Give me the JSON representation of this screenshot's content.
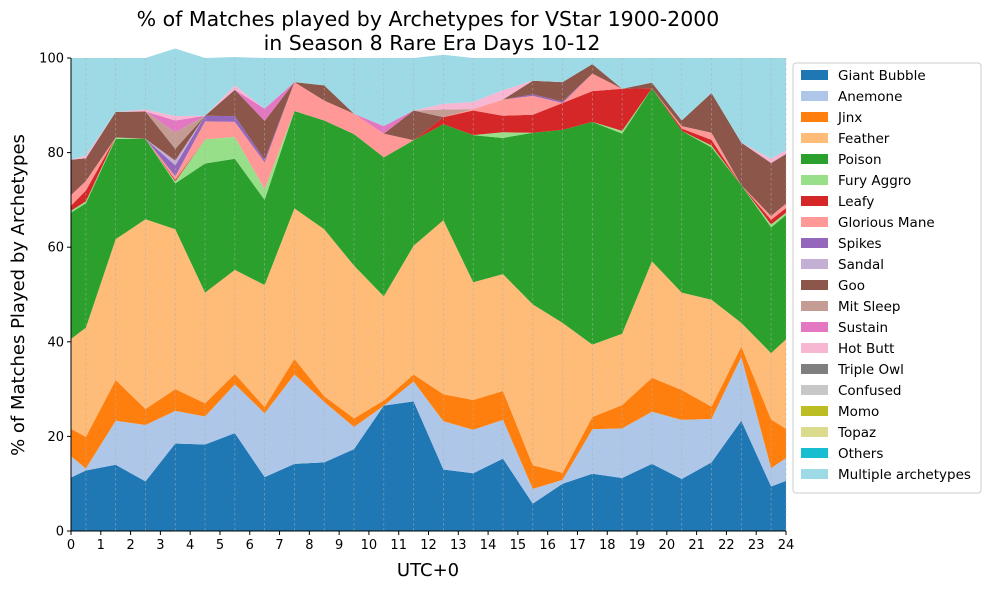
{
  "chart_data": {
    "type": "area",
    "stacked": true,
    "title": "% of Matches played by Archetypes for VStar 1900-2000",
    "subtitle": "in Season 8 Rare Era Days 10-12",
    "xlabel": "UTC+0",
    "ylabel": "% of Matches Played by Archetypes",
    "xlim": [
      0,
      24
    ],
    "ylim": [
      0,
      100
    ],
    "x_ticks": [
      "0",
      "1",
      "2",
      "3",
      "4",
      "5",
      "6",
      "7",
      "8",
      "9",
      "10",
      "11",
      "12",
      "13",
      "14",
      "15",
      "16",
      "17",
      "18",
      "19",
      "20",
      "21",
      "22",
      "23",
      "24"
    ],
    "y_ticks": [
      "0",
      "20",
      "40",
      "60",
      "80",
      "100"
    ],
    "grid": "vertical dashed at half-hour points",
    "legend_position": "right, outside",
    "x": [
      0,
      0.5,
      1.5,
      2.5,
      3.5,
      4.5,
      5.5,
      6.5,
      7.5,
      8.5,
      9.5,
      10.5,
      11.5,
      12.5,
      13.5,
      14.5,
      15.5,
      16.5,
      17.5,
      18.5,
      19.5,
      20.5,
      21.5,
      22.5,
      23.5,
      24
    ],
    "series": [
      {
        "name": "Giant Bubble",
        "color": "#1f77b4",
        "values": [
          11.3,
          12.8,
          14.0,
          10.5,
          18.5,
          18.3,
          20.7,
          11.4,
          14.2,
          14.5,
          17.3,
          26.5,
          27.4,
          13.0,
          12.2,
          15.3,
          5.8,
          10.0,
          12.1,
          11.2,
          14.2,
          11.0,
          14.5,
          23.3,
          9.4,
          10.6
        ]
      },
      {
        "name": "Anemone",
        "color": "#aec7e8",
        "values": [
          4.5,
          0.4,
          9.3,
          11.9,
          6.9,
          5.9,
          10.3,
          13.5,
          18.9,
          12.8,
          4.7,
          0.0,
          4.2,
          10.2,
          9.2,
          8.2,
          3.1,
          0.8,
          9.4,
          10.5,
          11.0,
          12.5,
          9.2,
          13.5,
          3.9,
          4.8
        ]
      },
      {
        "name": "Jinx",
        "color": "#ff7f0e",
        "values": [
          5.8,
          6.7,
          8.6,
          3.4,
          4.6,
          2.8,
          2.2,
          1.3,
          3.3,
          1.2,
          1.8,
          1.1,
          1.5,
          5.7,
          6.3,
          6.1,
          5.0,
          1.5,
          2.6,
          4.9,
          7.2,
          6.3,
          2.6,
          2.2,
          10.3,
          6.2
        ]
      },
      {
        "name": "Feather",
        "color": "#ffbb78",
        "values": [
          19.0,
          23.1,
          29.8,
          40.1,
          33.8,
          23.4,
          22.0,
          25.8,
          31.8,
          35.3,
          32.3,
          22.0,
          27.2,
          36.8,
          24.9,
          24.7,
          34.0,
          31.7,
          15.3,
          15.1,
          24.6,
          20.6,
          22.6,
          5.0,
          14.0,
          18.9
        ]
      },
      {
        "name": "Poison",
        "color": "#2ca02c",
        "values": [
          26.7,
          26.3,
          21.2,
          17.0,
          9.7,
          27.3,
          23.5,
          18.0,
          20.6,
          23.0,
          27.8,
          29.4,
          22.3,
          20.3,
          31.1,
          28.8,
          36.3,
          40.8,
          47.1,
          42.3,
          36.6,
          34.2,
          32.2,
          29.1,
          26.6,
          26.3
        ]
      },
      {
        "name": "Fury Aggro",
        "color": "#98df8a",
        "values": [
          0.4,
          0.4,
          0.3,
          0.0,
          0.4,
          5.1,
          4.6,
          2.3,
          0.0,
          0.0,
          0.0,
          0.0,
          0.0,
          0.0,
          0.0,
          1.2,
          0.0,
          0.0,
          0.0,
          0.6,
          0.0,
          0.0,
          0.4,
          0.0,
          0.6,
          0.5
        ]
      },
      {
        "name": "Leafy",
        "color": "#d62728",
        "values": [
          1.1,
          2.3,
          0.0,
          0.0,
          0.3,
          0.0,
          0.0,
          0.0,
          0.0,
          0.0,
          0.0,
          0.0,
          0.0,
          1.5,
          5.2,
          3.5,
          3.8,
          5.7,
          6.5,
          8.9,
          0.0,
          0.5,
          1.2,
          0.0,
          1.0,
          1.0
        ]
      },
      {
        "name": "Glorious Mane",
        "color": "#ff9896",
        "values": [
          2.2,
          2.0,
          0.0,
          0.0,
          0.8,
          3.8,
          3.2,
          5.6,
          6.1,
          4.2,
          4.3,
          5.0,
          0.0,
          0.0,
          0.3,
          3.4,
          4.0,
          0.0,
          3.7,
          0.0,
          0.0,
          0.5,
          1.5,
          0.0,
          0.8,
          0.9
        ]
      },
      {
        "name": "Spikes",
        "color": "#9467bd",
        "values": [
          0.0,
          0.0,
          0.0,
          0.0,
          2.3,
          1.2,
          1.2,
          0.6,
          0.0,
          0.0,
          0.0,
          0.0,
          0.0,
          0.0,
          0.0,
          0.0,
          0.3,
          0.3,
          0.0,
          0.0,
          0.0,
          0.0,
          0.0,
          0.0,
          0.0,
          0.0
        ]
      },
      {
        "name": "Sandal",
        "color": "#c5b0d5",
        "values": [
          0.0,
          0.0,
          0.0,
          0.0,
          1.0,
          0.0,
          0.0,
          0.0,
          0.0,
          0.0,
          0.0,
          0.0,
          0.0,
          0.0,
          0.0,
          0.0,
          0.0,
          0.0,
          0.0,
          0.0,
          0.0,
          0.0,
          0.0,
          0.0,
          0.0,
          0.0
        ]
      },
      {
        "name": "Goo",
        "color": "#8c564b",
        "values": [
          7.5,
          4.8,
          5.4,
          5.8,
          2.5,
          0.0,
          5.6,
          8.2,
          0.0,
          3.2,
          0.0,
          0.0,
          6.3,
          0.0,
          0.0,
          0.0,
          2.9,
          4.1,
          2.0,
          0.0,
          1.2,
          1.2,
          8.4,
          9.0,
          11.2,
          10.5
        ]
      },
      {
        "name": "Mit Sleep",
        "color": "#c49c94",
        "values": [
          0.0,
          0.0,
          0.0,
          0.0,
          3.5,
          0.0,
          0.0,
          0.0,
          0.0,
          0.0,
          0.0,
          0.0,
          0.0,
          1.6,
          0.0,
          0.0,
          0.0,
          0.0,
          0.0,
          0.0,
          0.0,
          0.0,
          0.0,
          0.0,
          0.0,
          0.0
        ]
      },
      {
        "name": "Sustain",
        "color": "#e377c2",
        "values": [
          0.0,
          0.0,
          0.0,
          0.0,
          2.5,
          0.0,
          0.0,
          2.6,
          0.0,
          0.0,
          0.0,
          1.6,
          0.0,
          0.0,
          0.0,
          0.0,
          0.0,
          0.0,
          0.0,
          0.0,
          0.0,
          0.0,
          0.0,
          0.0,
          0.0,
          0.0
        ]
      },
      {
        "name": "Hot Butt",
        "color": "#f7b6d2",
        "values": [
          0.0,
          0.6,
          0.0,
          0.4,
          0.9,
          0.0,
          0.9,
          0.0,
          0.0,
          0.0,
          0.0,
          0.0,
          0.0,
          1.2,
          1.5,
          2.0,
          0.0,
          0.0,
          0.0,
          0.0,
          0.0,
          0.0,
          0.0,
          0.0,
          0.9,
          0.8
        ]
      },
      {
        "name": "Triple Owl",
        "color": "#7f7f7f",
        "values": [
          0,
          0,
          0,
          0,
          0,
          0,
          0,
          0,
          0,
          0,
          0,
          0,
          0,
          0,
          0,
          0,
          0,
          0,
          0,
          0,
          0,
          0,
          0,
          0,
          0,
          0
        ]
      },
      {
        "name": "Confused",
        "color": "#c7c7c7",
        "values": [
          0,
          0,
          0,
          0,
          0,
          0,
          0,
          0,
          0,
          0,
          0,
          0,
          0,
          0,
          0,
          0,
          0,
          0,
          0,
          0,
          0,
          0,
          0,
          0,
          0,
          0
        ]
      },
      {
        "name": "Momo",
        "color": "#bcbd22",
        "values": [
          0,
          0,
          0,
          0,
          0,
          0,
          0,
          0,
          0,
          0,
          0,
          0,
          0,
          0,
          0,
          0,
          0,
          0,
          0,
          0,
          0,
          0,
          0,
          0,
          0,
          0
        ]
      },
      {
        "name": "Topaz",
        "color": "#dbdb8d",
        "values": [
          0,
          0,
          0,
          0,
          0,
          0,
          0,
          0,
          0,
          0,
          0,
          0,
          0,
          0,
          0,
          0,
          0,
          0,
          0,
          0,
          0,
          0,
          0,
          0,
          0,
          0
        ]
      },
      {
        "name": "Others",
        "color": "#17becf",
        "values": [
          0,
          0,
          0,
          0,
          0,
          0,
          0,
          0,
          0,
          0,
          0,
          0,
          0,
          0,
          0,
          0,
          0,
          0,
          0,
          0,
          0,
          0,
          0,
          0,
          0,
          0
        ]
      },
      {
        "name": "Multiple archetypes",
        "color": "#9edae5",
        "values": [
          21.5,
          20.6,
          11.4,
          10.9,
          14.3,
          12.2,
          6.0,
          10.7,
          5.1,
          5.8,
          11.8,
          14.4,
          11.1,
          10.4,
          9.3,
          6.8,
          4.8,
          5.1,
          1.3,
          6.5,
          5.2,
          13.2,
          7.4,
          17.9,
          21.3,
          19.5
        ]
      }
    ]
  }
}
